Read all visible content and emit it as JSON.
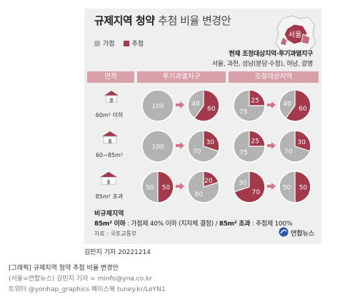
{
  "colors": {
    "general": "#b3b3b3",
    "lottery": "#a23a4c",
    "header": "#d8a1aa",
    "card": "#efefef"
  },
  "title": {
    "bold": "규제지역 청약",
    "normal": "추첨 비율 변경안"
  },
  "map": {
    "label": "서울",
    "icon": "seoul-region-map"
  },
  "legend": {
    "general": "가점",
    "lottery": "추첨"
  },
  "notice": {
    "heading": "현재 조정대상지역·투기과열지구",
    "regions": "서울, 과천, 성남(분당·수정), 하남, 광명"
  },
  "headers": {
    "area": "면적",
    "speculative": "투기과열지구",
    "adjustment": "조정대상지역"
  },
  "rows": [
    {
      "area": "60m² 이하",
      "house_icon": "house-icon-small",
      "speculative": {
        "before": {
          "general": 100,
          "lottery": 0
        },
        "after": {
          "general": 40,
          "lottery": 60
        }
      },
      "adjustment": {
        "before": {
          "general": 75,
          "lottery": 25
        },
        "after": {
          "general": 40,
          "lottery": 60
        }
      }
    },
    {
      "area": "60~85m²",
      "house_icon": "house-icon-medium",
      "speculative": {
        "before": {
          "general": 100,
          "lottery": 0
        },
        "after": {
          "general": 70,
          "lottery": 30
        }
      },
      "adjustment": {
        "before": {
          "general": 75,
          "lottery": 25
        },
        "after": {
          "general": 70,
          "lottery": 30
        }
      }
    },
    {
      "area": "85m² 초과",
      "house_icon": "house-icon-large",
      "speculative": {
        "before": {
          "general": 50,
          "lottery": 50
        },
        "after": {
          "general": 80,
          "lottery": 20
        }
      },
      "adjustment": {
        "before": {
          "general": 30,
          "lottery": 70
        },
        "after": {
          "general": 50,
          "lottery": 50
        }
      }
    }
  ],
  "non_regulated": {
    "heading": "비규제지역",
    "line_a_bold": "85m² 이하",
    "line_a_text": " : 가점제 40% 이하 (지자체 결정) / ",
    "line_b_bold": "85m² 초과",
    "line_b_text": " : 추첨제 100%"
  },
  "source": "자료 : 국토교통부",
  "logo": {
    "text": "연합뉴스",
    "icon": "yonhap-logo-icon"
  },
  "credit": "김민지 기자  20221214",
  "caption": {
    "line1": "[그래픽] 규제지역 청약 추첨 비율 변경안",
    "line2": "(서울=연합뉴스) 김민지 기자 = minfo@yna.co.kr",
    "line3": "트위터 @yonhap_graphics 페이스북 tuney.kr/LeYN1"
  }
}
